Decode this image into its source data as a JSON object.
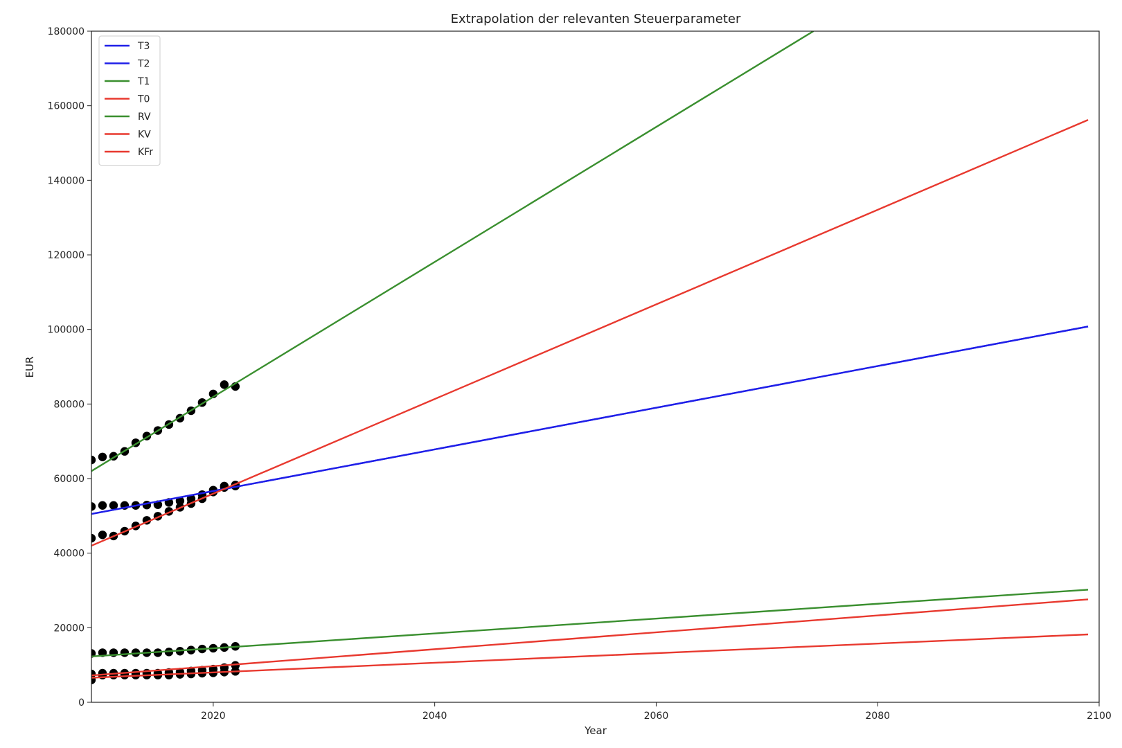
{
  "chart_data": {
    "type": "line",
    "title": "Extrapolation der relevanten Steuerparameter",
    "xlabel": "Year",
    "ylabel": "EUR",
    "xlim": [
      2009,
      2100
    ],
    "ylim": [
      0,
      180000
    ],
    "xticks": [
      2020,
      2040,
      2060,
      2080,
      2100
    ],
    "yticks": [
      0,
      20000,
      40000,
      60000,
      80000,
      100000,
      120000,
      140000,
      160000,
      180000
    ],
    "grid": false,
    "legend_position": "top-left",
    "series": [
      {
        "name": "T3",
        "color": "#1f1fe8",
        "x": [
          2009,
          2099
        ],
        "y": [
          50500,
          100800
        ]
      },
      {
        "name": "T2",
        "color": "#1f1fe8",
        "x": [
          2009,
          2099
        ],
        "y": [
          50500,
          100800
        ]
      },
      {
        "name": "T1",
        "color": "#3a8f2f",
        "x": [
          2009,
          2074.2
        ],
        "y": [
          62000,
          180000
        ]
      },
      {
        "name": "T0",
        "color": "#e8392f",
        "x": [
          2009,
          2099
        ],
        "y": [
          42000,
          156200
        ]
      },
      {
        "name": "RV",
        "color": "#3a8f2f",
        "x": [
          2009,
          2099
        ],
        "y": [
          12300,
          30200
        ]
      },
      {
        "name": "KV",
        "color": "#e8392f",
        "x": [
          2009,
          2099
        ],
        "y": [
          7200,
          27600
        ]
      },
      {
        "name": "KFr",
        "color": "#e8392f",
        "x": [
          2009,
          2099
        ],
        "y": [
          6600,
          18200
        ]
      }
    ],
    "observations": {
      "color": "#000000",
      "x": [
        2009,
        2010,
        2011,
        2012,
        2013,
        2014,
        2015,
        2016,
        2017,
        2018,
        2019,
        2020,
        2021,
        2022
      ],
      "groups": [
        {
          "y": [
            65000,
            65800,
            66000,
            67300,
            69600,
            71400,
            72900,
            74500,
            76200,
            78200,
            80400,
            82700,
            85200,
            84700
          ]
        },
        {
          "y": [
            52500,
            52800,
            52800,
            52800,
            52800,
            52900,
            53000,
            53600,
            54000,
            54600,
            55700,
            56900,
            58000,
            58300
          ]
        },
        {
          "y": [
            44000,
            44900,
            44600,
            45900,
            47300,
            48800,
            49900,
            51200,
            52300,
            53300,
            54600,
            56400,
            57600,
            58000
          ]
        },
        {
          "y": [
            13100,
            13300,
            13300,
            13300,
            13300,
            13300,
            13300,
            13500,
            13700,
            14000,
            14300,
            14500,
            14700,
            15000
          ]
        },
        {
          "y": [
            7600,
            7800,
            7800,
            7800,
            7800,
            7800,
            7800,
            8000,
            8100,
            8400,
            8600,
            8900,
            9300,
            9900
          ]
        },
        {
          "y": [
            6000,
            7300,
            7300,
            7300,
            7300,
            7300,
            7300,
            7300,
            7500,
            7600,
            7800,
            7900,
            8100,
            8300
          ]
        }
      ]
    }
  }
}
